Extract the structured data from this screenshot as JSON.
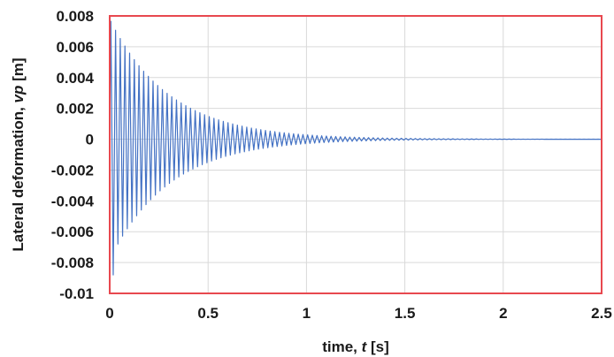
{
  "chart_data": {
    "type": "line",
    "xlabel": {
      "prefix": "time, ",
      "var": "t",
      "unit": " [s]"
    },
    "ylabel": {
      "prefix": "Lateral deformation, ",
      "var": "vp",
      "unit": " [m]"
    },
    "xlim": [
      0,
      2.5
    ],
    "ylim": [
      -0.01,
      0.008
    ],
    "x_ticks": [
      "0",
      "0.5",
      "1",
      "1.5",
      "2",
      "2.5"
    ],
    "y_ticks": [
      "-0.01",
      "-0.008",
      "-0.006",
      "-0.004",
      "-0.002",
      "0",
      "0.002",
      "0.004",
      "0.006",
      "0.008"
    ],
    "grid": "on",
    "plot_border_color": "#e8484f",
    "series": [
      {
        "color": "#4472c4",
        "signal": "damped oscillation",
        "frequency_hz": 42,
        "peak_amplitude": 0.0078,
        "min_value": -0.0088,
        "decay_rate_per_s": 3.3,
        "envelope": {
          "t": [
            0.02,
            0.1,
            0.25,
            0.5,
            0.75,
            1.0,
            1.2,
            1.5,
            2.5
          ],
          "amplitude": [
            0.0078,
            0.0058,
            0.0042,
            0.0026,
            0.0014,
            0.0006,
            0.0003,
            0.0001,
            0.0
          ]
        }
      }
    ]
  }
}
